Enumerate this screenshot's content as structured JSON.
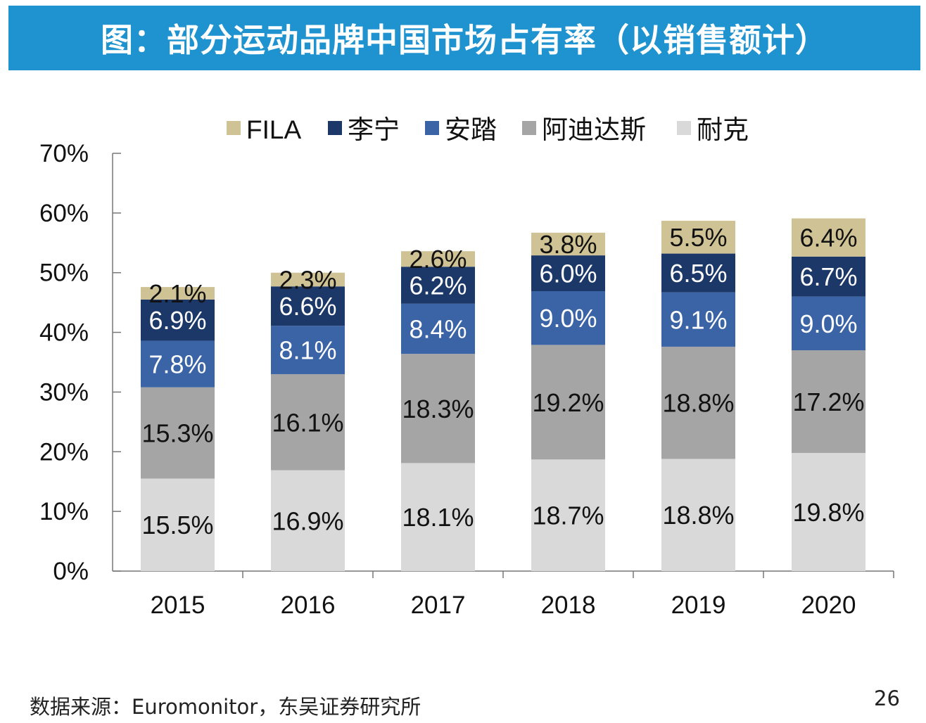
{
  "title": "图：部分运动品牌中国市场占有率（以销售额计）",
  "source": "数据来源：Euromonitor，东吴证券研究所",
  "page_number": "26",
  "chart_data": {
    "type": "bar",
    "stacked": true,
    "title": "图：部分运动品牌中国市场占有率（以销售额计）",
    "categories": [
      "2015",
      "2016",
      "2017",
      "2018",
      "2019",
      "2020"
    ],
    "series": [
      {
        "name": "耐克",
        "color": "#d9d9d9",
        "label_color": "#111111",
        "values": [
          15.5,
          16.9,
          18.1,
          18.7,
          18.8,
          19.8
        ]
      },
      {
        "name": "阿迪达斯",
        "color": "#a5a5a5",
        "label_color": "#111111",
        "values": [
          15.3,
          16.1,
          18.3,
          19.2,
          18.8,
          17.2
        ]
      },
      {
        "name": "安踏",
        "color": "#3a64a6",
        "label_color": "#ffffff",
        "values": [
          7.8,
          8.1,
          8.4,
          9.0,
          9.1,
          9.0
        ]
      },
      {
        "name": "李宁",
        "color": "#1c3869",
        "label_color": "#ffffff",
        "values": [
          6.9,
          6.6,
          6.2,
          6.0,
          6.5,
          6.7
        ]
      },
      {
        "name": "FILA",
        "color": "#cfc395",
        "label_color": "#111111",
        "values": [
          2.1,
          2.3,
          2.6,
          3.8,
          5.5,
          6.4
        ]
      }
    ],
    "legend_order": [
      "FILA",
      "李宁",
      "安踏",
      "阿迪达斯",
      "耐克"
    ],
    "legend_position": "top",
    "ylim": [
      0,
      70
    ],
    "yticks": [
      "0%",
      "10%",
      "20%",
      "30%",
      "40%",
      "50%",
      "60%",
      "70%"
    ],
    "data_label_suffix": "%",
    "grid": false,
    "xlabel": "",
    "ylabel": ""
  }
}
